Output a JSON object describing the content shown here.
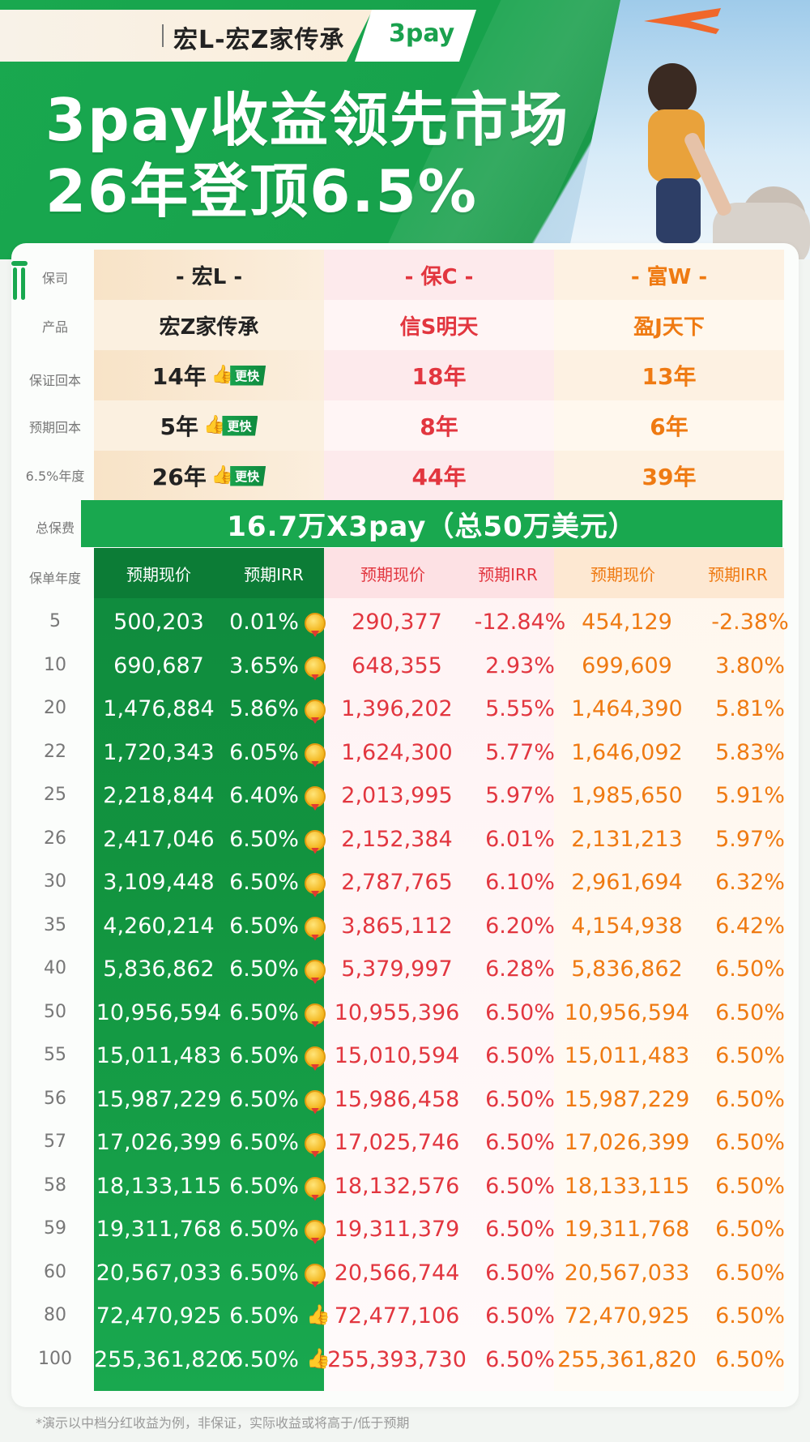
{
  "header": {
    "tag_title": "宏L-宏Z家传承",
    "tag_brand": "3pay",
    "headline_line1": "3pay收益领先市场",
    "headline_line2": "26年登顶6.5%"
  },
  "labels": {
    "company": "保司",
    "product": "产品",
    "guaranteed_breakeven": "保证回本",
    "expected_breakeven": "预期回本",
    "irr_year": "6.5%年度",
    "total_premium": "总保费",
    "policy_year": "保单年度"
  },
  "companies": [
    "- 宏L -",
    "- 保C -",
    "- 富W -"
  ],
  "products": [
    "宏Z家传承",
    "信S明天",
    "盈J天下"
  ],
  "guaranteed_breakeven": [
    "14年",
    "18年",
    "13年"
  ],
  "expected_breakeven": [
    "5年",
    "8年",
    "6年"
  ],
  "irr_year": [
    "26年",
    "44年",
    "39年"
  ],
  "fast_badge": "更快",
  "total_premium": "16.7万X3pay（总50万美元）",
  "subheaders": {
    "value": "预期现价",
    "irr": "预期IRR"
  },
  "rows": [
    {
      "year": "5",
      "a": "500,203",
      "ai": "0.01%",
      "b": "290,377",
      "bi": "-12.84%",
      "c": "454,129",
      "ci": "-2.38%"
    },
    {
      "year": "10",
      "a": "690,687",
      "ai": "3.65%",
      "b": "648,355",
      "bi": "2.93%",
      "c": "699,609",
      "ci": "3.80%"
    },
    {
      "year": "20",
      "a": "1,476,884",
      "ai": "5.86%",
      "b": "1,396,202",
      "bi": "5.55%",
      "c": "1,464,390",
      "ci": "5.81%"
    },
    {
      "year": "22",
      "a": "1,720,343",
      "ai": "6.05%",
      "b": "1,624,300",
      "bi": "5.77%",
      "c": "1,646,092",
      "ci": "5.83%"
    },
    {
      "year": "25",
      "a": "2,218,844",
      "ai": "6.40%",
      "b": "2,013,995",
      "bi": "5.97%",
      "c": "1,985,650",
      "ci": "5.91%"
    },
    {
      "year": "26",
      "a": "2,417,046",
      "ai": "6.50%",
      "b": "2,152,384",
      "bi": "6.01%",
      "c": "2,131,213",
      "ci": "5.97%"
    },
    {
      "year": "30",
      "a": "3,109,448",
      "ai": "6.50%",
      "b": "2,787,765",
      "bi": "6.10%",
      "c": "2,961,694",
      "ci": "6.32%"
    },
    {
      "year": "35",
      "a": "4,260,214",
      "ai": "6.50%",
      "b": "3,865,112",
      "bi": "6.20%",
      "c": "4,154,938",
      "ci": "6.42%"
    },
    {
      "year": "40",
      "a": "5,836,862",
      "ai": "6.50%",
      "b": "5,379,997",
      "bi": "6.28%",
      "c": "5,836,862",
      "ci": "6.50%"
    },
    {
      "year": "50",
      "a": "10,956,594",
      "ai": "6.50%",
      "b": "10,955,396",
      "bi": "6.50%",
      "c": "10,956,594",
      "ci": "6.50%"
    },
    {
      "year": "55",
      "a": "15,011,483",
      "ai": "6.50%",
      "b": "15,010,594",
      "bi": "6.50%",
      "c": "15,011,483",
      "ci": "6.50%"
    },
    {
      "year": "56",
      "a": "15,987,229",
      "ai": "6.50%",
      "b": "15,986,458",
      "bi": "6.50%",
      "c": "15,987,229",
      "ci": "6.50%"
    },
    {
      "year": "57",
      "a": "17,026,399",
      "ai": "6.50%",
      "b": "17,025,746",
      "bi": "6.50%",
      "c": "17,026,399",
      "ci": "6.50%"
    },
    {
      "year": "58",
      "a": "18,133,115",
      "ai": "6.50%",
      "b": "18,132,576",
      "bi": "6.50%",
      "c": "18,133,115",
      "ci": "6.50%"
    },
    {
      "year": "59",
      "a": "19,311,768",
      "ai": "6.50%",
      "b": "19,311,379",
      "bi": "6.50%",
      "c": "19,311,768",
      "ci": "6.50%"
    },
    {
      "year": "60",
      "a": "20,567,033",
      "ai": "6.50%",
      "b": "20,566,744",
      "bi": "6.50%",
      "c": "20,567,033",
      "ci": "6.50%"
    },
    {
      "year": "80",
      "a": "72,470,925",
      "ai": "6.50%",
      "b": "72,477,106",
      "bi": "6.50%",
      "c": "72,470,925",
      "ci": "6.50%"
    },
    {
      "year": "100",
      "a": "255,361,820",
      "ai": "6.50%",
      "b": "255,393,730",
      "bi": "6.50%",
      "c": "255,361,820",
      "ci": "6.50%"
    }
  ],
  "row_icons": [
    "medal",
    "medal",
    "medal",
    "medal",
    "medal",
    "medal",
    "medal",
    "medal",
    "medal",
    "medal",
    "medal",
    "medal",
    "medal",
    "medal",
    "medal",
    "medal",
    "thumbs-up",
    "thumbs-up"
  ],
  "footnote": "*演示以中档分红收益为例，非保证，实际收益或将高于/低于预期",
  "colors": {
    "brand_green": "#19a84f",
    "red": "#e2363f",
    "orange": "#ef7a12"
  }
}
